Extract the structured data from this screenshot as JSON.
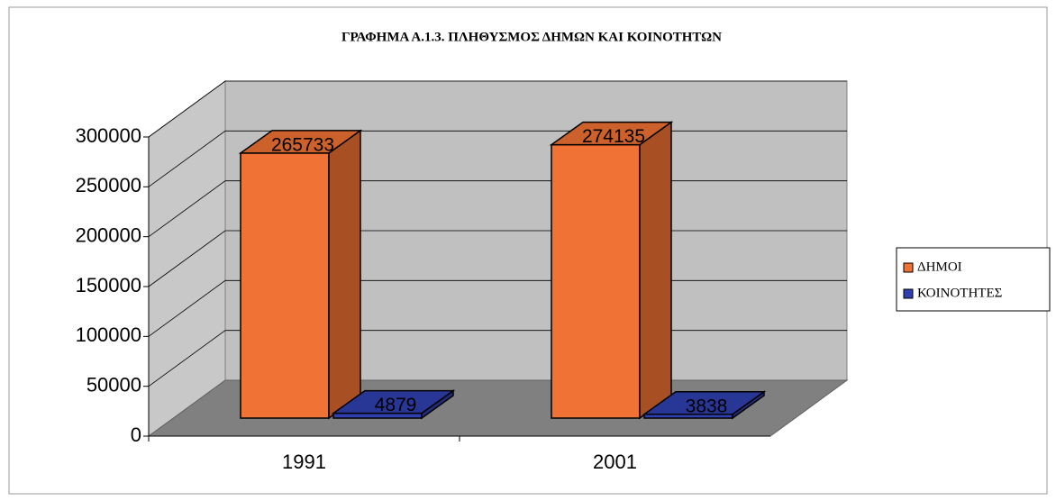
{
  "chart_data": {
    "type": "bar3d",
    "title": "ΓΡΑΦΗΜΑ Α.1.3. ΠΛΗΘΥΣΜΟΣ ΔΗΜΩΝ ΚΑΙ ΚΟΙΝΟΤΗΤΩΝ",
    "categories": [
      "1991",
      "2001"
    ],
    "series": [
      {
        "name": "ΔΗΜΟΙ",
        "color": "#f07234",
        "values": [
          265733,
          274135
        ]
      },
      {
        "name": "ΚΟΙΝΟΤΗΤΕΣ",
        "color": "#2f3fb0",
        "values": [
          4879,
          3838
        ]
      }
    ],
    "ylim": [
      0,
      300000
    ],
    "yticks": [
      0,
      50000,
      100000,
      150000,
      200000,
      250000,
      300000
    ],
    "grid": true,
    "legend": "right"
  }
}
